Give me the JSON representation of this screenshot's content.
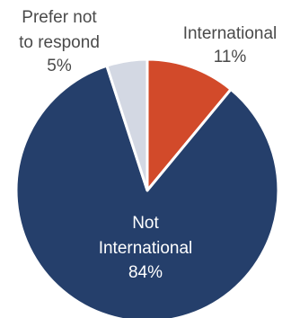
{
  "chart_data": {
    "type": "pie",
    "title": "",
    "slices": [
      {
        "label": "International",
        "value": 11,
        "value_label": "11%",
        "color": "#d24a2a"
      },
      {
        "label": "Not International",
        "value": 84,
        "value_label": "84%",
        "color": "#253f6b"
      },
      {
        "label": "Prefer not to respond",
        "value": 5,
        "value_label": "5%",
        "color": "#d3d8e3"
      }
    ],
    "start_angle_deg": 0,
    "direction": "clockwise",
    "labels": {
      "international": {
        "line1": "International",
        "line2": "11%"
      },
      "not_international": {
        "line1": "Not",
        "line2": "International",
        "line3": "84%"
      },
      "prefer_not": {
        "line1": "Prefer not",
        "line2": "to respond",
        "line3": "5%"
      }
    }
  }
}
